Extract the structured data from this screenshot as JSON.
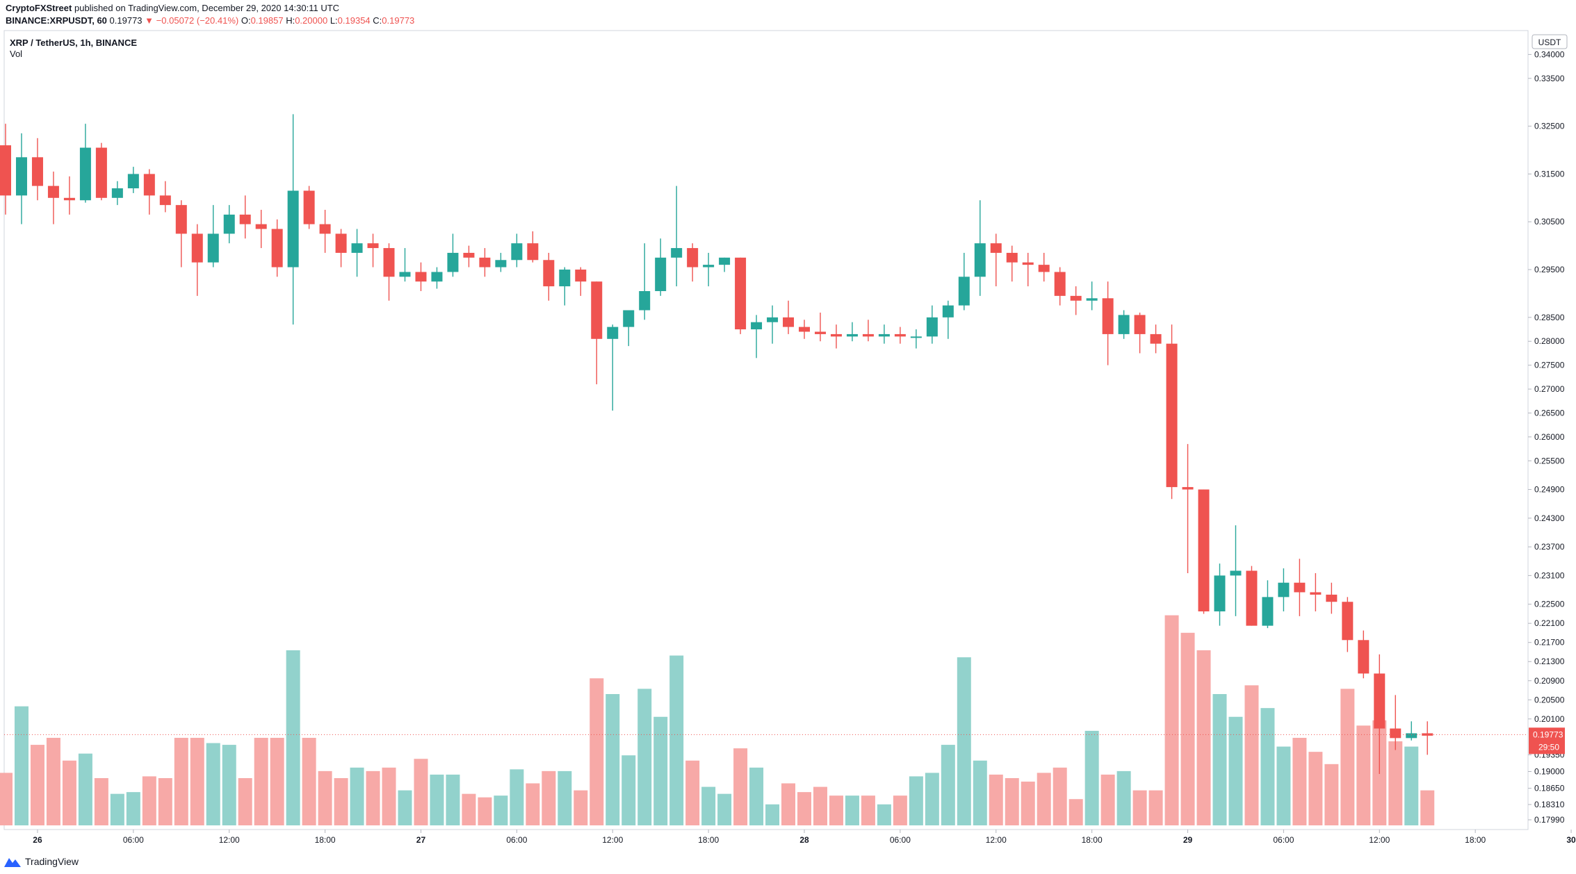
{
  "header": {
    "publisher": "CryptoFXStreet",
    "published_text": "published on TradingView.com, December 29, 2020 14:30:11 UTC",
    "symbol": "BINANCE:XRPUSDT, 60",
    "last": "0.19773",
    "change": "−0.05072 (−20.41%)",
    "o_label": "O:",
    "o_value": "0.19857",
    "h_label": "H:",
    "h_value": "0.20000",
    "l_label": "L:",
    "l_value": "0.19354",
    "c_label": "C:",
    "c_value": "0.19773"
  },
  "legend": {
    "title": "XRP / TetherUS, 1h, BINANCE",
    "indicator": "Vol"
  },
  "price_axis": {
    "currency": "USDT",
    "ticks": [
      "0.34000",
      "0.33500",
      "0.32500",
      "0.31500",
      "0.30500",
      "0.29500",
      "0.28500",
      "0.28000",
      "0.27500",
      "0.27000",
      "0.26500",
      "0.26000",
      "0.25500",
      "0.24900",
      "0.24300",
      "0.23700",
      "0.23100",
      "0.22500",
      "0.22100",
      "0.21700",
      "0.21300",
      "0.20900",
      "0.20500",
      "0.20100",
      "0.19350",
      "0.19000",
      "0.18650",
      "0.18310",
      "0.17990"
    ],
    "last_price_label": "0.19773",
    "countdown_label": "29:50"
  },
  "time_axis": {
    "labels": [
      {
        "label": "26",
        "i": 2
      },
      {
        "label": "06:00",
        "i": 8
      },
      {
        "label": "12:00",
        "i": 14
      },
      {
        "label": "18:00",
        "i": 20
      },
      {
        "label": "27",
        "i": 26
      },
      {
        "label": "06:00",
        "i": 32
      },
      {
        "label": "12:00",
        "i": 38
      },
      {
        "label": "18:00",
        "i": 44
      },
      {
        "label": "28",
        "i": 50
      },
      {
        "label": "06:00",
        "i": 56
      },
      {
        "label": "12:00",
        "i": 62
      },
      {
        "label": "18:00",
        "i": 68
      },
      {
        "label": "29",
        "i": 74
      },
      {
        "label": "06:00",
        "i": 80
      },
      {
        "label": "12:00",
        "i": 86
      },
      {
        "label": "18:00",
        "i": 92
      },
      {
        "label": "30",
        "i": 98
      }
    ]
  },
  "brand": "TradingView",
  "colors": {
    "up": "#26a69a",
    "down": "#ef5350",
    "vol_up": "#92d2cc",
    "vol_down": "#f7a9a7",
    "last_line": "#ef5350"
  },
  "chart_data": {
    "type": "candlestick",
    "ylim": [
      0.1799,
      0.3418
    ],
    "volume_scale": [
      0,
      100
    ],
    "x_unit": "hourly candle index (index 2 = Dec 26 00:00)",
    "candles": [
      {
        "o": 0.321,
        "h": 0.3255,
        "l": 0.3065,
        "c": 0.3105,
        "v": 30
      },
      {
        "o": 0.3105,
        "h": 0.3235,
        "l": 0.3045,
        "c": 0.3185,
        "v": 68
      },
      {
        "o": 0.3185,
        "h": 0.3225,
        "l": 0.3095,
        "c": 0.3125,
        "v": 46
      },
      {
        "o": 0.3125,
        "h": 0.3155,
        "l": 0.3045,
        "c": 0.31,
        "v": 50
      },
      {
        "o": 0.31,
        "h": 0.3145,
        "l": 0.3065,
        "c": 0.3095,
        "v": 37
      },
      {
        "o": 0.3095,
        "h": 0.3255,
        "l": 0.309,
        "c": 0.3205,
        "v": 41
      },
      {
        "o": 0.3205,
        "h": 0.3215,
        "l": 0.3095,
        "c": 0.31,
        "v": 27
      },
      {
        "o": 0.31,
        "h": 0.3135,
        "l": 0.3085,
        "c": 0.312,
        "v": 18
      },
      {
        "o": 0.312,
        "h": 0.3165,
        "l": 0.311,
        "c": 0.315,
        "v": 19
      },
      {
        "o": 0.315,
        "h": 0.316,
        "l": 0.3065,
        "c": 0.3105,
        "v": 28
      },
      {
        "o": 0.3105,
        "h": 0.3135,
        "l": 0.307,
        "c": 0.3085,
        "v": 27
      },
      {
        "o": 0.3085,
        "h": 0.3095,
        "l": 0.2955,
        "c": 0.3025,
        "v": 50
      },
      {
        "o": 0.3025,
        "h": 0.3045,
        "l": 0.2895,
        "c": 0.2965,
        "v": 50
      },
      {
        "o": 0.2965,
        "h": 0.3085,
        "l": 0.2955,
        "c": 0.3025,
        "v": 47
      },
      {
        "o": 0.3025,
        "h": 0.3085,
        "l": 0.3005,
        "c": 0.3065,
        "v": 46
      },
      {
        "o": 0.3065,
        "h": 0.3105,
        "l": 0.3015,
        "c": 0.3045,
        "v": 27
      },
      {
        "o": 0.3045,
        "h": 0.3075,
        "l": 0.2995,
        "c": 0.3035,
        "v": 50
      },
      {
        "o": 0.3035,
        "h": 0.3055,
        "l": 0.2935,
        "c": 0.2955,
        "v": 50
      },
      {
        "o": 0.2955,
        "h": 0.3275,
        "l": 0.2835,
        "c": 0.3115,
        "v": 100
      },
      {
        "o": 0.3115,
        "h": 0.3125,
        "l": 0.3035,
        "c": 0.3045,
        "v": 50
      },
      {
        "o": 0.3045,
        "h": 0.3075,
        "l": 0.2985,
        "c": 0.3025,
        "v": 31
      },
      {
        "o": 0.3025,
        "h": 0.3035,
        "l": 0.2955,
        "c": 0.2985,
        "v": 27
      },
      {
        "o": 0.2985,
        "h": 0.3035,
        "l": 0.2935,
        "c": 0.3005,
        "v": 33
      },
      {
        "o": 0.3005,
        "h": 0.3025,
        "l": 0.2955,
        "c": 0.2995,
        "v": 31
      },
      {
        "o": 0.2995,
        "h": 0.3005,
        "l": 0.2885,
        "c": 0.2935,
        "v": 33
      },
      {
        "o": 0.2935,
        "h": 0.2995,
        "l": 0.2925,
        "c": 0.2945,
        "v": 20
      },
      {
        "o": 0.2945,
        "h": 0.2965,
        "l": 0.2905,
        "c": 0.2925,
        "v": 38
      },
      {
        "o": 0.2925,
        "h": 0.2955,
        "l": 0.291,
        "c": 0.2945,
        "v": 29
      },
      {
        "o": 0.2945,
        "h": 0.3025,
        "l": 0.2935,
        "c": 0.2985,
        "v": 29
      },
      {
        "o": 0.2985,
        "h": 0.3,
        "l": 0.2955,
        "c": 0.2975,
        "v": 18
      },
      {
        "o": 0.2975,
        "h": 0.2995,
        "l": 0.2935,
        "c": 0.2955,
        "v": 16
      },
      {
        "o": 0.2955,
        "h": 0.2985,
        "l": 0.2945,
        "c": 0.297,
        "v": 17
      },
      {
        "o": 0.297,
        "h": 0.3025,
        "l": 0.2955,
        "c": 0.3005,
        "v": 32
      },
      {
        "o": 0.3005,
        "h": 0.303,
        "l": 0.2965,
        "c": 0.297,
        "v": 24
      },
      {
        "o": 0.297,
        "h": 0.2985,
        "l": 0.2885,
        "c": 0.2915,
        "v": 31
      },
      {
        "o": 0.2915,
        "h": 0.2955,
        "l": 0.2875,
        "c": 0.295,
        "v": 31
      },
      {
        "o": 0.295,
        "h": 0.2955,
        "l": 0.2895,
        "c": 0.2925,
        "v": 20
      },
      {
        "o": 0.2925,
        "h": 0.2925,
        "l": 0.271,
        "c": 0.2805,
        "v": 84
      },
      {
        "o": 0.2805,
        "h": 0.2835,
        "l": 0.2655,
        "c": 0.283,
        "v": 75
      },
      {
        "o": 0.283,
        "h": 0.2865,
        "l": 0.279,
        "c": 0.2865,
        "v": 40
      },
      {
        "o": 0.2865,
        "h": 0.3005,
        "l": 0.2845,
        "c": 0.2905,
        "v": 78
      },
      {
        "o": 0.2905,
        "h": 0.3015,
        "l": 0.2895,
        "c": 0.2975,
        "v": 62
      },
      {
        "o": 0.2975,
        "h": 0.3125,
        "l": 0.2915,
        "c": 0.2995,
        "v": 97
      },
      {
        "o": 0.2995,
        "h": 0.3005,
        "l": 0.2925,
        "c": 0.2955,
        "v": 37
      },
      {
        "o": 0.2955,
        "h": 0.2985,
        "l": 0.2915,
        "c": 0.296,
        "v": 22
      },
      {
        "o": 0.296,
        "h": 0.2975,
        "l": 0.2945,
        "c": 0.2975,
        "v": 18
      },
      {
        "o": 0.2975,
        "h": 0.2975,
        "l": 0.2815,
        "c": 0.2825,
        "v": 44
      },
      {
        "o": 0.2825,
        "h": 0.2855,
        "l": 0.2765,
        "c": 0.284,
        "v": 33
      },
      {
        "o": 0.284,
        "h": 0.2875,
        "l": 0.2795,
        "c": 0.285,
        "v": 12
      },
      {
        "o": 0.285,
        "h": 0.2885,
        "l": 0.2815,
        "c": 0.283,
        "v": 24
      },
      {
        "o": 0.283,
        "h": 0.2845,
        "l": 0.2805,
        "c": 0.282,
        "v": 19
      },
      {
        "o": 0.282,
        "h": 0.286,
        "l": 0.28,
        "c": 0.2815,
        "v": 22
      },
      {
        "o": 0.2815,
        "h": 0.2835,
        "l": 0.2785,
        "c": 0.281,
        "v": 17
      },
      {
        "o": 0.281,
        "h": 0.284,
        "l": 0.28,
        "c": 0.2815,
        "v": 17
      },
      {
        "o": 0.2815,
        "h": 0.2845,
        "l": 0.28,
        "c": 0.281,
        "v": 17
      },
      {
        "o": 0.281,
        "h": 0.2835,
        "l": 0.2795,
        "c": 0.2815,
        "v": 12
      },
      {
        "o": 0.2815,
        "h": 0.283,
        "l": 0.2795,
        "c": 0.281,
        "v": 17
      },
      {
        "o": 0.281,
        "h": 0.2825,
        "l": 0.2785,
        "c": 0.281,
        "v": 28
      },
      {
        "o": 0.281,
        "h": 0.2875,
        "l": 0.2795,
        "c": 0.285,
        "v": 30
      },
      {
        "o": 0.285,
        "h": 0.2885,
        "l": 0.2805,
        "c": 0.2875,
        "v": 46
      },
      {
        "o": 0.2875,
        "h": 0.2985,
        "l": 0.2865,
        "c": 0.2935,
        "v": 96
      },
      {
        "o": 0.2935,
        "h": 0.3095,
        "l": 0.2895,
        "c": 0.3005,
        "v": 37
      },
      {
        "o": 0.3005,
        "h": 0.3025,
        "l": 0.2915,
        "c": 0.2985,
        "v": 29
      },
      {
        "o": 0.2985,
        "h": 0.3,
        "l": 0.2925,
        "c": 0.2965,
        "v": 27
      },
      {
        "o": 0.2965,
        "h": 0.2985,
        "l": 0.2915,
        "c": 0.296,
        "v": 25
      },
      {
        "o": 0.296,
        "h": 0.2985,
        "l": 0.2925,
        "c": 0.2945,
        "v": 30
      },
      {
        "o": 0.2945,
        "h": 0.2955,
        "l": 0.2875,
        "c": 0.2895,
        "v": 33
      },
      {
        "o": 0.2895,
        "h": 0.2915,
        "l": 0.2855,
        "c": 0.2885,
        "v": 15
      },
      {
        "o": 0.2885,
        "h": 0.2925,
        "l": 0.2865,
        "c": 0.289,
        "v": 54
      },
      {
        "o": 0.289,
        "h": 0.2925,
        "l": 0.275,
        "c": 0.2815,
        "v": 29
      },
      {
        "o": 0.2815,
        "h": 0.2865,
        "l": 0.2805,
        "c": 0.2855,
        "v": 31
      },
      {
        "o": 0.2855,
        "h": 0.286,
        "l": 0.2775,
        "c": 0.2815,
        "v": 20
      },
      {
        "o": 0.2815,
        "h": 0.2835,
        "l": 0.2775,
        "c": 0.2795,
        "v": 20
      },
      {
        "o": 0.2795,
        "h": 0.2835,
        "l": 0.247,
        "c": 0.2495,
        "v": 120
      },
      {
        "o": 0.2495,
        "h": 0.2585,
        "l": 0.2315,
        "c": 0.249,
        "v": 110
      },
      {
        "o": 0.249,
        "h": 0.249,
        "l": 0.223,
        "c": 0.2235,
        "v": 100
      },
      {
        "o": 0.2235,
        "h": 0.2335,
        "l": 0.2205,
        "c": 0.231,
        "v": 75
      },
      {
        "o": 0.231,
        "h": 0.2415,
        "l": 0.2225,
        "c": 0.232,
        "v": 62
      },
      {
        "o": 0.232,
        "h": 0.233,
        "l": 0.2205,
        "c": 0.2205,
        "v": 80
      },
      {
        "o": 0.2205,
        "h": 0.23,
        "l": 0.22,
        "c": 0.2265,
        "v": 67
      },
      {
        "o": 0.2265,
        "h": 0.2325,
        "l": 0.2235,
        "c": 0.2295,
        "v": 45
      },
      {
        "o": 0.2295,
        "h": 0.2345,
        "l": 0.2225,
        "c": 0.2275,
        "v": 50
      },
      {
        "o": 0.2275,
        "h": 0.2315,
        "l": 0.2235,
        "c": 0.227,
        "v": 42
      },
      {
        "o": 0.227,
        "h": 0.2295,
        "l": 0.223,
        "c": 0.2255,
        "v": 35
      },
      {
        "o": 0.2255,
        "h": 0.2265,
        "l": 0.215,
        "c": 0.2175,
        "v": 78
      },
      {
        "o": 0.2175,
        "h": 0.2195,
        "l": 0.2095,
        "c": 0.2105,
        "v": 57
      },
      {
        "o": 0.2105,
        "h": 0.2145,
        "l": 0.1895,
        "c": 0.199,
        "v": 60
      },
      {
        "o": 0.199,
        "h": 0.206,
        "l": 0.1945,
        "c": 0.197,
        "v": 48
      },
      {
        "o": 0.197,
        "h": 0.2005,
        "l": 0.1965,
        "c": 0.198,
        "v": 45
      },
      {
        "o": 0.198,
        "h": 0.2005,
        "l": 0.1935,
        "c": 0.1975,
        "v": 20
      }
    ]
  }
}
